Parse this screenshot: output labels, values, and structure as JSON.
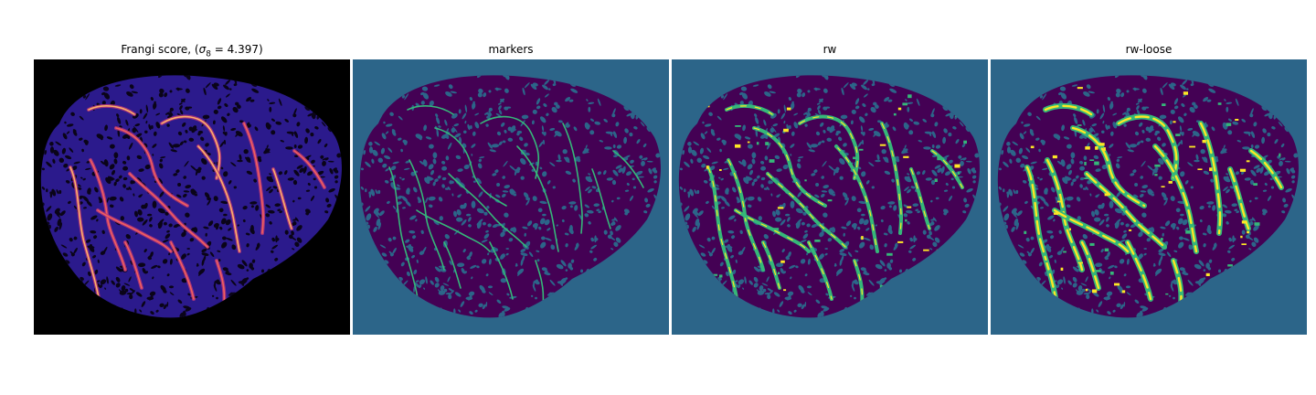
{
  "figure": {
    "panels": [
      {
        "id": "frangi",
        "title_prefix": "Frangi score, (",
        "title_sigma": "σ",
        "title_sub": "8",
        "title_suffix": " = 4.397)",
        "colormap": "magma",
        "background": "#000000",
        "tissue_color": "#2b1a8c"
      },
      {
        "id": "markers",
        "title": "markers",
        "colormap": "viridis",
        "background": "#2c6589",
        "tissue_color": "#440154",
        "marker_color": "#35b779"
      },
      {
        "id": "rw",
        "title": "rw",
        "colormap": "viridis",
        "background": "#2c6589",
        "tissue_color": "#440154",
        "vessel_color": "#35b779",
        "highlight_color": "#fde725"
      },
      {
        "id": "rw-loose",
        "title": "rw-loose",
        "colormap": "viridis",
        "background": "#2c6589",
        "tissue_color": "#440154",
        "vessel_color": "#35b779",
        "highlight_color": "#fde725"
      }
    ]
  }
}
